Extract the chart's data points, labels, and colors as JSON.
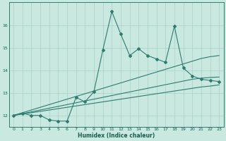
{
  "xlabel": "Humidex (Indice chaleur)",
  "ylabel": "",
  "x_data": [
    0,
    1,
    2,
    3,
    4,
    5,
    6,
    7,
    8,
    9,
    10,
    11,
    12,
    13,
    14,
    15,
    16,
    17,
    18,
    19,
    20,
    21,
    22,
    23
  ],
  "y_main": [
    12.0,
    12.1,
    12.0,
    12.0,
    11.8,
    11.75,
    11.75,
    12.8,
    12.6,
    13.05,
    14.9,
    16.6,
    15.6,
    14.65,
    14.95,
    14.65,
    14.5,
    14.35,
    15.95,
    14.1,
    13.75,
    13.6,
    13.55,
    13.5
  ],
  "y_upper": [
    12.0,
    12.12,
    12.24,
    12.36,
    12.48,
    12.6,
    12.72,
    12.84,
    12.96,
    13.08,
    13.2,
    13.32,
    13.44,
    13.56,
    13.68,
    13.8,
    13.92,
    14.04,
    14.16,
    14.28,
    14.4,
    14.52,
    14.6,
    14.65
  ],
  "y_mid": [
    12.0,
    12.08,
    12.16,
    12.24,
    12.32,
    12.4,
    12.48,
    12.56,
    12.64,
    12.72,
    12.8,
    12.88,
    12.96,
    13.04,
    13.12,
    13.2,
    13.28,
    13.36,
    13.44,
    13.52,
    13.6,
    13.65,
    13.68,
    13.7
  ],
  "y_lower": [
    12.0,
    12.06,
    12.12,
    12.18,
    12.24,
    12.3,
    12.36,
    12.42,
    12.48,
    12.54,
    12.6,
    12.66,
    12.72,
    12.78,
    12.84,
    12.9,
    12.96,
    13.02,
    13.08,
    13.14,
    13.2,
    13.26,
    13.3,
    13.35
  ],
  "line_color": "#2e7d6e",
  "bg_color": "#c8e8e0",
  "grid_color": "#aacfc8",
  "text_color": "#1a5c50",
  "ylim": [
    11.5,
    17.0
  ],
  "yticks": [
    12,
    13,
    14,
    15,
    16
  ],
  "xticks": [
    0,
    1,
    2,
    3,
    4,
    5,
    6,
    7,
    8,
    9,
    10,
    11,
    12,
    13,
    14,
    15,
    16,
    17,
    18,
    19,
    20,
    21,
    22,
    23
  ],
  "figwidth": 3.2,
  "figheight": 2.0,
  "dpi": 100
}
